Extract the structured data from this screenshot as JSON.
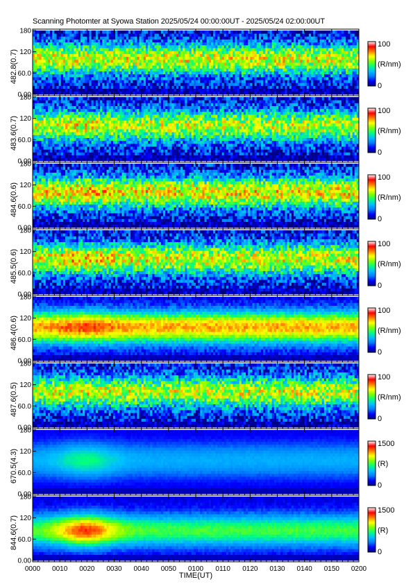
{
  "title": "Scanning Photomter at Syowa Station  2025/05/24 00:00:00UT - 2025/05/24 02:00:00UT",
  "chart_data": {
    "type": "heatmap",
    "xlabel": "TIME(UT)",
    "x_ticks": [
      "0000",
      "0010",
      "0020",
      "0030",
      "0040",
      "0050",
      "0100",
      "0110",
      "0120",
      "0130",
      "0140",
      "0150",
      "0200"
    ],
    "y_ticks": [
      "0.00",
      "60.0",
      "120",
      "180"
    ],
    "ylim": [
      0,
      180
    ],
    "colormap": [
      "#000080",
      "#0000ff",
      "#0080ff",
      "#00c0ff",
      "#00ff80",
      "#80ff00",
      "#ffff00",
      "#ff8000",
      "#ff0000",
      "#ffffff"
    ],
    "panels": [
      {
        "ylabel": "482.8(0.7)",
        "cb_max": "100",
        "cb_min": "0",
        "cb_unit": "(R/nm)",
        "band_level": 0.55,
        "band_center": 100,
        "band_width": 45,
        "early_boost": 0.0,
        "noise": 0.35
      },
      {
        "ylabel": "483.6(0.7)",
        "cb_max": "100",
        "cb_min": "0",
        "cb_unit": "(R/nm)",
        "band_level": 0.52,
        "band_center": 100,
        "band_width": 45,
        "early_boost": 0.05,
        "noise": 0.35
      },
      {
        "ylabel": "484.6(0.6)",
        "cb_max": "100",
        "cb_min": "0",
        "cb_unit": "(R/nm)",
        "band_level": 0.58,
        "band_center": 100,
        "band_width": 45,
        "early_boost": 0.05,
        "noise": 0.35
      },
      {
        "ylabel": "485.5(0.6)",
        "cb_max": "100",
        "cb_min": "0",
        "cb_unit": "(R/nm)",
        "band_level": 0.55,
        "band_center": 100,
        "band_width": 45,
        "early_boost": 0.08,
        "noise": 0.35
      },
      {
        "ylabel": "486.4(0.6)",
        "cb_max": "100",
        "cb_min": "0",
        "cb_unit": "(R/nm)",
        "band_level": 0.66,
        "band_center": 95,
        "band_width": 45,
        "early_boost": 0.1,
        "noise": 0.12
      },
      {
        "ylabel": "487.6(0.5)",
        "cb_max": "100",
        "cb_min": "0",
        "cb_unit": "(R/nm)",
        "band_level": 0.53,
        "band_center": 100,
        "band_width": 45,
        "early_boost": 0.03,
        "noise": 0.35
      },
      {
        "ylabel": "670.5(4.3)",
        "cb_max": "1500",
        "cb_min": "0",
        "cb_unit": "(R)",
        "band_level": 0.22,
        "band_center": 95,
        "band_width": 50,
        "early_boost": 0.15,
        "noise": 0.03
      },
      {
        "ylabel": "844.6(0.7)",
        "cb_max": "1500",
        "cb_min": "0",
        "cb_unit": "(R)",
        "band_level": 0.42,
        "band_center": 85,
        "band_width": 45,
        "early_boost": 0.35,
        "noise": 0.06
      }
    ]
  }
}
